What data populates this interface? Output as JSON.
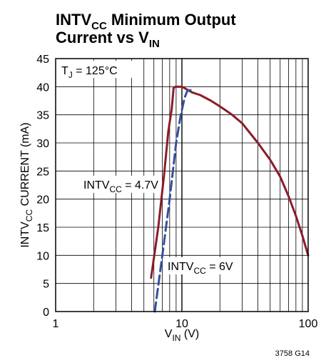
{
  "chart_data": {
    "type": "line",
    "title_line1": {
      "main": "INTV",
      "sub": "CC",
      "rest": " Minimum Output"
    },
    "title_line2": {
      "main": "Current vs V",
      "sub": "IN"
    },
    "xlabel": {
      "main": "V",
      "sub": "IN",
      "rest": "  (V)"
    },
    "ylabel": {
      "main": "INTV",
      "sub": "CC",
      "rest": "  CURRENT (mA)"
    },
    "x_scale": "log",
    "xlim": [
      1,
      100
    ],
    "ylim": [
      0,
      45
    ],
    "x_ticks": [
      1,
      10,
      100
    ],
    "y_ticks": [
      0,
      5,
      10,
      15,
      20,
      25,
      30,
      35,
      40,
      45
    ],
    "grid": true,
    "condition": {
      "main": "T",
      "sub": "J",
      "rest": " = 125°C"
    },
    "series": [
      {
        "name": "INTVCC = 4.7V",
        "label": {
          "main": "INTV",
          "sub": "CC",
          "rest": " = 4.7V"
        },
        "color": "#8b1c2a",
        "style": "solid",
        "x": [
          5.7,
          6.5,
          7.2,
          7.8,
          8.3,
          8.6,
          8.9,
          9.4,
          10,
          11,
          12,
          14,
          17,
          20,
          25,
          30,
          40,
          50,
          60,
          70,
          80,
          90,
          100
        ],
        "y": [
          6,
          15,
          24,
          32,
          36,
          39.8,
          40,
          40,
          40,
          39.5,
          39,
          38.5,
          37.5,
          36.5,
          35,
          33.5,
          30,
          27,
          24,
          20.5,
          17,
          13.5,
          10
        ]
      },
      {
        "name": "INTVCC = 6V",
        "label": {
          "main": "INTV",
          "sub": "CC",
          "rest": " = 6V"
        },
        "color": "#3450a0",
        "style": "dashed",
        "x": [
          6.1,
          7,
          8,
          9,
          9.8,
          10.5,
          11,
          12
        ],
        "y": [
          0,
          10,
          20,
          30,
          35,
          38,
          39.2,
          39.5
        ]
      }
    ],
    "annotation": "3758 G14"
  }
}
